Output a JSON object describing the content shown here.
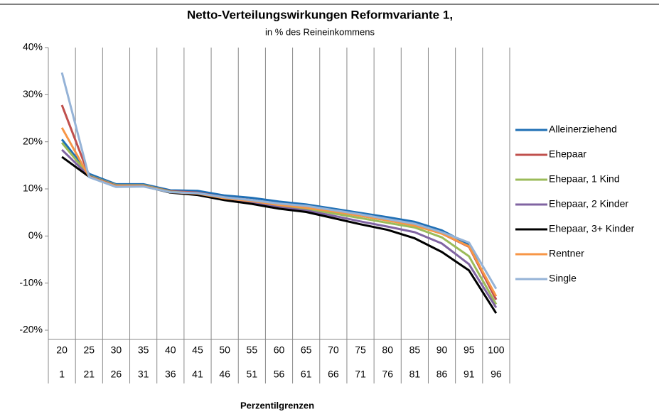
{
  "chart_data": {
    "type": "line",
    "title": "Netto-Verteilungswirkungen Reformvariante 1,",
    "subtitle": "in % des Reineinkommens",
    "xlabel": "Perzentilgrenzen",
    "categories": [
      "20",
      "25",
      "30",
      "35",
      "40",
      "45",
      "50",
      "55",
      "60",
      "65",
      "70",
      "75",
      "80",
      "85",
      "90",
      "95",
      "100"
    ],
    "categories_lower": [
      "1",
      "21",
      "26",
      "31",
      "36",
      "41",
      "46",
      "51",
      "56",
      "61",
      "66",
      "71",
      "76",
      "81",
      "86",
      "91",
      "96"
    ],
    "ylim": [
      -20,
      40
    ],
    "yticks": [
      {
        "value": -20,
        "label": "-20%"
      },
      {
        "value": -10,
        "label": "-10%"
      },
      {
        "value": 0,
        "label": "0%"
      },
      {
        "value": 10,
        "label": "10%"
      },
      {
        "value": 20,
        "label": "20%"
      },
      {
        "value": 30,
        "label": "30%"
      },
      {
        "value": 40,
        "label": "40%"
      }
    ],
    "grid": false,
    "legend": "right",
    "series": [
      {
        "name": "Alleinerziehend",
        "color": "#1f6fb5",
        "values": [
          20.5,
          13.2,
          11,
          11,
          9.7,
          9.6,
          8.6,
          8.1,
          7.3,
          6.7,
          5.8,
          4.9,
          4,
          3,
          1.2,
          -1.8,
          -13.5
        ]
      },
      {
        "name": "Ehepaar",
        "color": "#c0504d",
        "values": [
          27.8,
          12.8,
          10.8,
          10.8,
          9.5,
          9.2,
          8.2,
          7.6,
          6.8,
          6.2,
          5.2,
          4.3,
          3.3,
          2.3,
          0.5,
          -2.3,
          -13.5
        ]
      },
      {
        "name": "Ehepaar, 1 Kind",
        "color": "#9bbb59",
        "values": [
          19.8,
          12.8,
          10.8,
          10.8,
          9.4,
          9.0,
          8.0,
          7.3,
          6.4,
          5.8,
          4.8,
          3.8,
          2.8,
          1.8,
          -0.3,
          -4.3,
          -14.5
        ]
      },
      {
        "name": "Ehepaar, 2 Kinder",
        "color": "#8064a2",
        "values": [
          18.3,
          12.7,
          10.7,
          10.7,
          9.3,
          8.9,
          7.8,
          7.0,
          6.1,
          5.4,
          4.3,
          3.1,
          2.0,
          0.8,
          -1.6,
          -6.0,
          -15.2
        ]
      },
      {
        "name": "Ehepaar, 3+ Kinder",
        "color": "#000000",
        "values": [
          16.8,
          12.6,
          10.6,
          10.6,
          9.2,
          8.7,
          7.6,
          6.8,
          5.8,
          5.1,
          3.8,
          2.5,
          1.3,
          -0.5,
          -3.4,
          -7.3,
          -16.4
        ]
      },
      {
        "name": "Rentner",
        "color": "#f79646",
        "values": [
          23,
          12.6,
          10.6,
          10.6,
          9.3,
          9.0,
          8.0,
          7.4,
          6.6,
          6.0,
          5.2,
          4.3,
          3.3,
          2.2,
          0.5,
          -2.2,
          -12.8
        ]
      },
      {
        "name": "Single",
        "color": "#95b3d7",
        "values": [
          34.7,
          12.5,
          10.4,
          10.5,
          9.3,
          9.1,
          8.2,
          7.6,
          6.9,
          6.4,
          5.5,
          4.6,
          3.6,
          2.6,
          0.8,
          -1.4,
          -11.2
        ]
      }
    ]
  }
}
